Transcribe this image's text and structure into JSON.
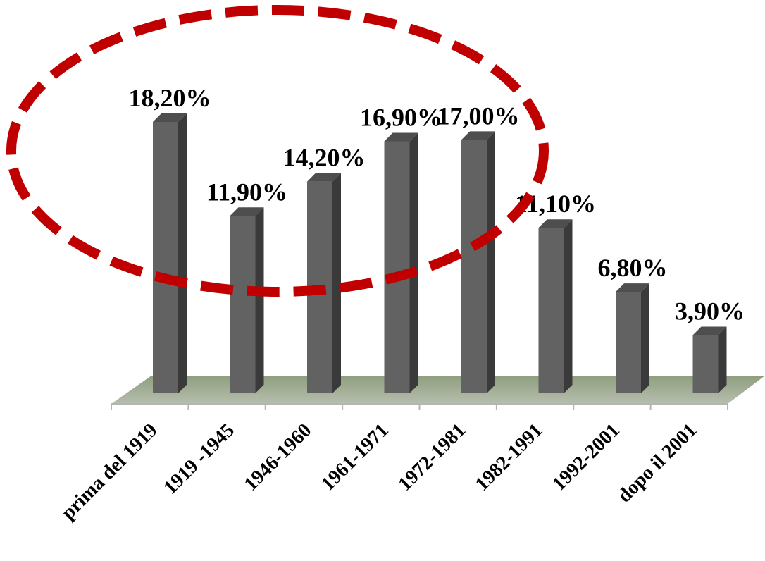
{
  "chart_data": {
    "type": "bar",
    "categories": [
      "prima del 1919",
      "1919 -1945",
      "1946-1960",
      "1961-1971",
      "1972-1981",
      "1982-1991",
      "1992-2001",
      "dopo il 2001"
    ],
    "values": [
      18.2,
      11.9,
      14.2,
      16.9,
      17.0,
      11.1,
      6.8,
      3.9
    ],
    "data_labels": [
      "18,20%",
      "11,90%",
      "14,20%",
      "16,90%",
      "17,00%",
      "11,10%",
      "6,80%",
      "3,90%"
    ],
    "unit": "%",
    "ylim": [
      0,
      18.2
    ],
    "grid": false,
    "legend": "none",
    "style": "3d-columns",
    "colors": {
      "bar_front": "#626262",
      "bar_side": "#3a3a3a",
      "bar_top": "#4e4e4e",
      "floor_top": "#8e9e7e",
      "floor_bottom": "#b6beae",
      "highlight_ellipse": "#c00000"
    }
  }
}
